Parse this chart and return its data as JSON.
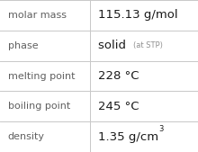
{
  "rows": [
    {
      "label": "molar mass",
      "value": "115.13 g/mol",
      "type": "plain"
    },
    {
      "label": "phase",
      "value": "solid",
      "suffix": "(at STP)",
      "type": "suffix"
    },
    {
      "label": "melting point",
      "value": "228 °C",
      "type": "plain"
    },
    {
      "label": "boiling point",
      "value": "245 °C",
      "type": "plain"
    },
    {
      "label": "density",
      "value": "1.35 g/cm",
      "superscript": "3",
      "type": "super"
    }
  ],
  "background_color": "#ffffff",
  "line_color": "#c8c8c8",
  "label_color": "#606060",
  "value_color": "#1a1a1a",
  "suffix_color": "#909090",
  "label_fontsize": 8.0,
  "value_fontsize": 9.5,
  "suffix_fontsize": 6.0,
  "super_fontsize": 6.0,
  "col_split": 0.455,
  "fig_width": 2.2,
  "fig_height": 1.69,
  "dpi": 100
}
